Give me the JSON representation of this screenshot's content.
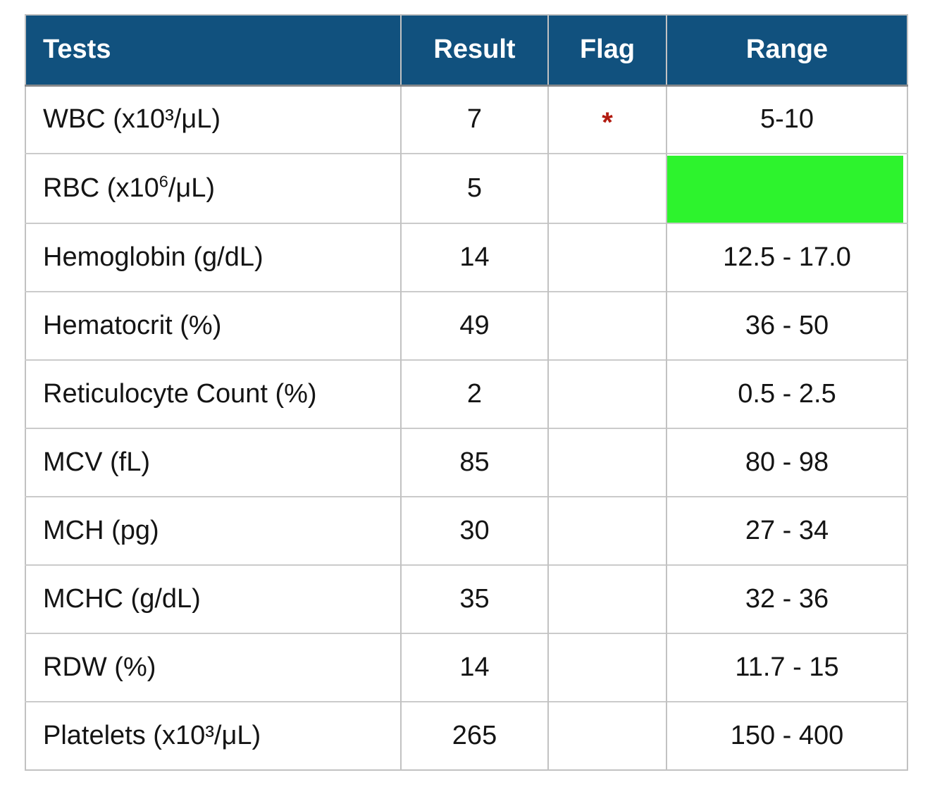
{
  "colors": {
    "header_bg": "#11517E",
    "header_text": "#FFFFFF",
    "grid_line": "#C2C2C2",
    "header_divider": "#85878A",
    "flag_red": "#B21B10",
    "highlight_green": "#2DF32D",
    "body_text": "#141414"
  },
  "table": {
    "columns": [
      "Tests",
      "Result",
      "Flag",
      "Range"
    ],
    "rows": [
      {
        "test": "WBC (x10³/μL)",
        "result": "7",
        "flag": "*",
        "range": "5-10"
      },
      {
        "test_pre": "RBC (x10",
        "test_sup": "6",
        "test_post": "/μL)",
        "result": "5",
        "flag": "",
        "range": "",
        "range_highlighted": true
      },
      {
        "test": "Hemoglobin (g/dL)",
        "result": "14",
        "flag": "",
        "range": "12.5 - 17.0"
      },
      {
        "test": "Hematocrit (%)",
        "result": "49",
        "flag": "",
        "range": "36 - 50"
      },
      {
        "test": "Reticulocyte Count (%)",
        "result": "2",
        "flag": "",
        "range": "0.5 - 2.5"
      },
      {
        "test": "MCV (fL)",
        "result": "85",
        "flag": "",
        "range": "80 - 98"
      },
      {
        "test": "MCH (pg)",
        "result": "30",
        "flag": "",
        "range": "27 - 34"
      },
      {
        "test": "MCHC (g/dL)",
        "result": "35",
        "flag": "",
        "range": "32 - 36"
      },
      {
        "test": "RDW (%)",
        "result": "14",
        "flag": "",
        "range": "11.7 - 15"
      },
      {
        "test": "Platelets (x10³/μL)",
        "result": "265",
        "flag": "",
        "range": "150 - 400"
      }
    ]
  },
  "chart_data": {
    "type": "table",
    "title": "",
    "columns": [
      "Tests",
      "Result",
      "Flag",
      "Range"
    ],
    "rows": [
      [
        "WBC (x10³/μL)",
        "7",
        "*",
        "5-10"
      ],
      [
        "RBC (x10⁶/μL)",
        "5",
        "",
        ""
      ],
      [
        "Hemoglobin (g/dL)",
        "14",
        "",
        "12.5 - 17.0"
      ],
      [
        "Hematocrit (%)",
        "49",
        "",
        "36 - 50"
      ],
      [
        "Reticulocyte Count (%)",
        "2",
        "",
        "0.5 - 2.5"
      ],
      [
        "MCV (fL)",
        "85",
        "",
        "80 - 98"
      ],
      [
        "MCH (pg)",
        "30",
        "",
        "27 - 34"
      ],
      [
        "MCHC (g/dL)",
        "35",
        "",
        "32 - 36"
      ],
      [
        "RDW (%)",
        "14",
        "",
        "11.7 - 15"
      ],
      [
        "Platelets (x10³/μL)",
        "265",
        "",
        "150 - 400"
      ]
    ],
    "annotations": {
      "flagged_row": "WBC (x10³/μL)",
      "flag_symbol": "*",
      "flag_color": "#B21B10",
      "highlighted_cell": {
        "row": "RBC (x10⁶/μL)",
        "column": "Range",
        "color": "#2DF32D"
      }
    },
    "layout_hints": {
      "header_bg": "#11517E",
      "grid": true
    }
  }
}
